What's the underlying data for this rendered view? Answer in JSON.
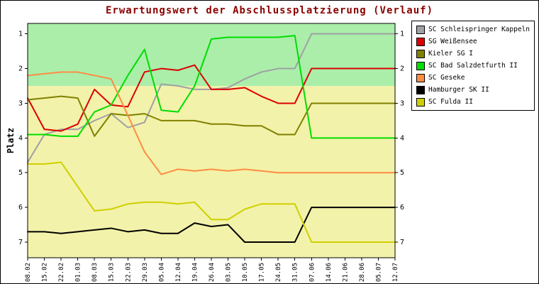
{
  "chart_data": {
    "type": "line",
    "title": "Erwartungswert der Abschlussplatzierung (Verlauf)",
    "title_color": "#8b0000",
    "ylabel": "Platz",
    "y_inverted": true,
    "ylim": [
      0.7,
      7.45
    ],
    "y_ticks": [
      1,
      2,
      3,
      4,
      5,
      6,
      7
    ],
    "grid": false,
    "legend_position": "top-right",
    "zones": [
      {
        "name": "upper-green-zone",
        "from": 0.7,
        "to": 2.5,
        "color": "#aaeeaa"
      },
      {
        "name": "lower-yellow-zone",
        "from": 2.5,
        "to": 7.45,
        "color": "#f2f2aa"
      }
    ],
    "x_labels": [
      "08.02",
      "15.02",
      "22.02",
      "01.03",
      "08.03",
      "15.03",
      "22.03",
      "29.03",
      "05.04",
      "12.04",
      "19.04",
      "26.04",
      "03.05",
      "10.05",
      "17.05",
      "24.05",
      "31.05",
      "07.06",
      "14.06",
      "21.06",
      "28.06",
      "05.07",
      "12.07"
    ],
    "series": [
      {
        "name": "SC Schleispringer Kappeln",
        "color": "#a0a0a4",
        "values": [
          4.7,
          3.9,
          3.75,
          3.75,
          3.5,
          3.3,
          3.7,
          3.55,
          2.45,
          2.5,
          2.6,
          2.6,
          2.55,
          2.3,
          2.1,
          2.0,
          2.0,
          1.0,
          1.0,
          1.0,
          1.0,
          1.0,
          1.0
        ]
      },
      {
        "name": "SG Weißensee",
        "color": "#dd0000",
        "values": [
          2.85,
          3.75,
          3.8,
          3.6,
          2.6,
          3.05,
          3.1,
          2.1,
          2.0,
          2.05,
          1.9,
          2.6,
          2.6,
          2.55,
          2.8,
          3.0,
          3.0,
          2.0,
          2.0,
          2.0,
          2.0,
          2.0,
          2.0
        ]
      },
      {
        "name": "Kieler SG I",
        "color": "#808000",
        "values": [
          2.9,
          2.85,
          2.8,
          2.85,
          3.95,
          3.3,
          3.35,
          3.3,
          3.5,
          3.5,
          3.5,
          3.6,
          3.6,
          3.65,
          3.65,
          3.9,
          3.9,
          3.0,
          3.0,
          3.0,
          3.0,
          3.0,
          3.0
        ]
      },
      {
        "name": "SC Bad Salzdetfurth II",
        "color": "#00dd00",
        "values": [
          3.9,
          3.9,
          3.95,
          3.95,
          3.25,
          3.05,
          2.2,
          1.45,
          3.2,
          3.25,
          2.5,
          1.15,
          1.1,
          1.1,
          1.1,
          1.1,
          1.05,
          4.0,
          4.0,
          4.0,
          4.0,
          4.0,
          4.0
        ]
      },
      {
        "name": "SC Geseke",
        "color": "#ff8c44",
        "values": [
          2.2,
          2.15,
          2.1,
          2.1,
          2.2,
          2.3,
          3.35,
          4.4,
          5.05,
          4.9,
          4.95,
          4.9,
          4.95,
          4.9,
          4.95,
          5.0,
          5.0,
          5.0,
          5.0,
          5.0,
          5.0,
          5.0,
          5.0
        ]
      },
      {
        "name": "Hamburger SK II",
        "color": "#000000",
        "values": [
          6.7,
          6.7,
          6.75,
          6.7,
          6.65,
          6.6,
          6.7,
          6.65,
          6.75,
          6.75,
          6.45,
          6.55,
          6.5,
          7.0,
          7.0,
          7.0,
          7.0,
          6.0,
          6.0,
          6.0,
          6.0,
          6.0,
          6.0
        ]
      },
      {
        "name": "SC Fulda II",
        "color": "#cfcf00",
        "values": [
          4.75,
          4.75,
          4.7,
          5.4,
          6.1,
          6.05,
          5.9,
          5.85,
          5.85,
          5.9,
          5.85,
          6.35,
          6.35,
          6.05,
          5.9,
          5.9,
          5.9,
          7.0,
          7.0,
          7.0,
          7.0,
          7.0,
          7.0
        ]
      }
    ]
  }
}
